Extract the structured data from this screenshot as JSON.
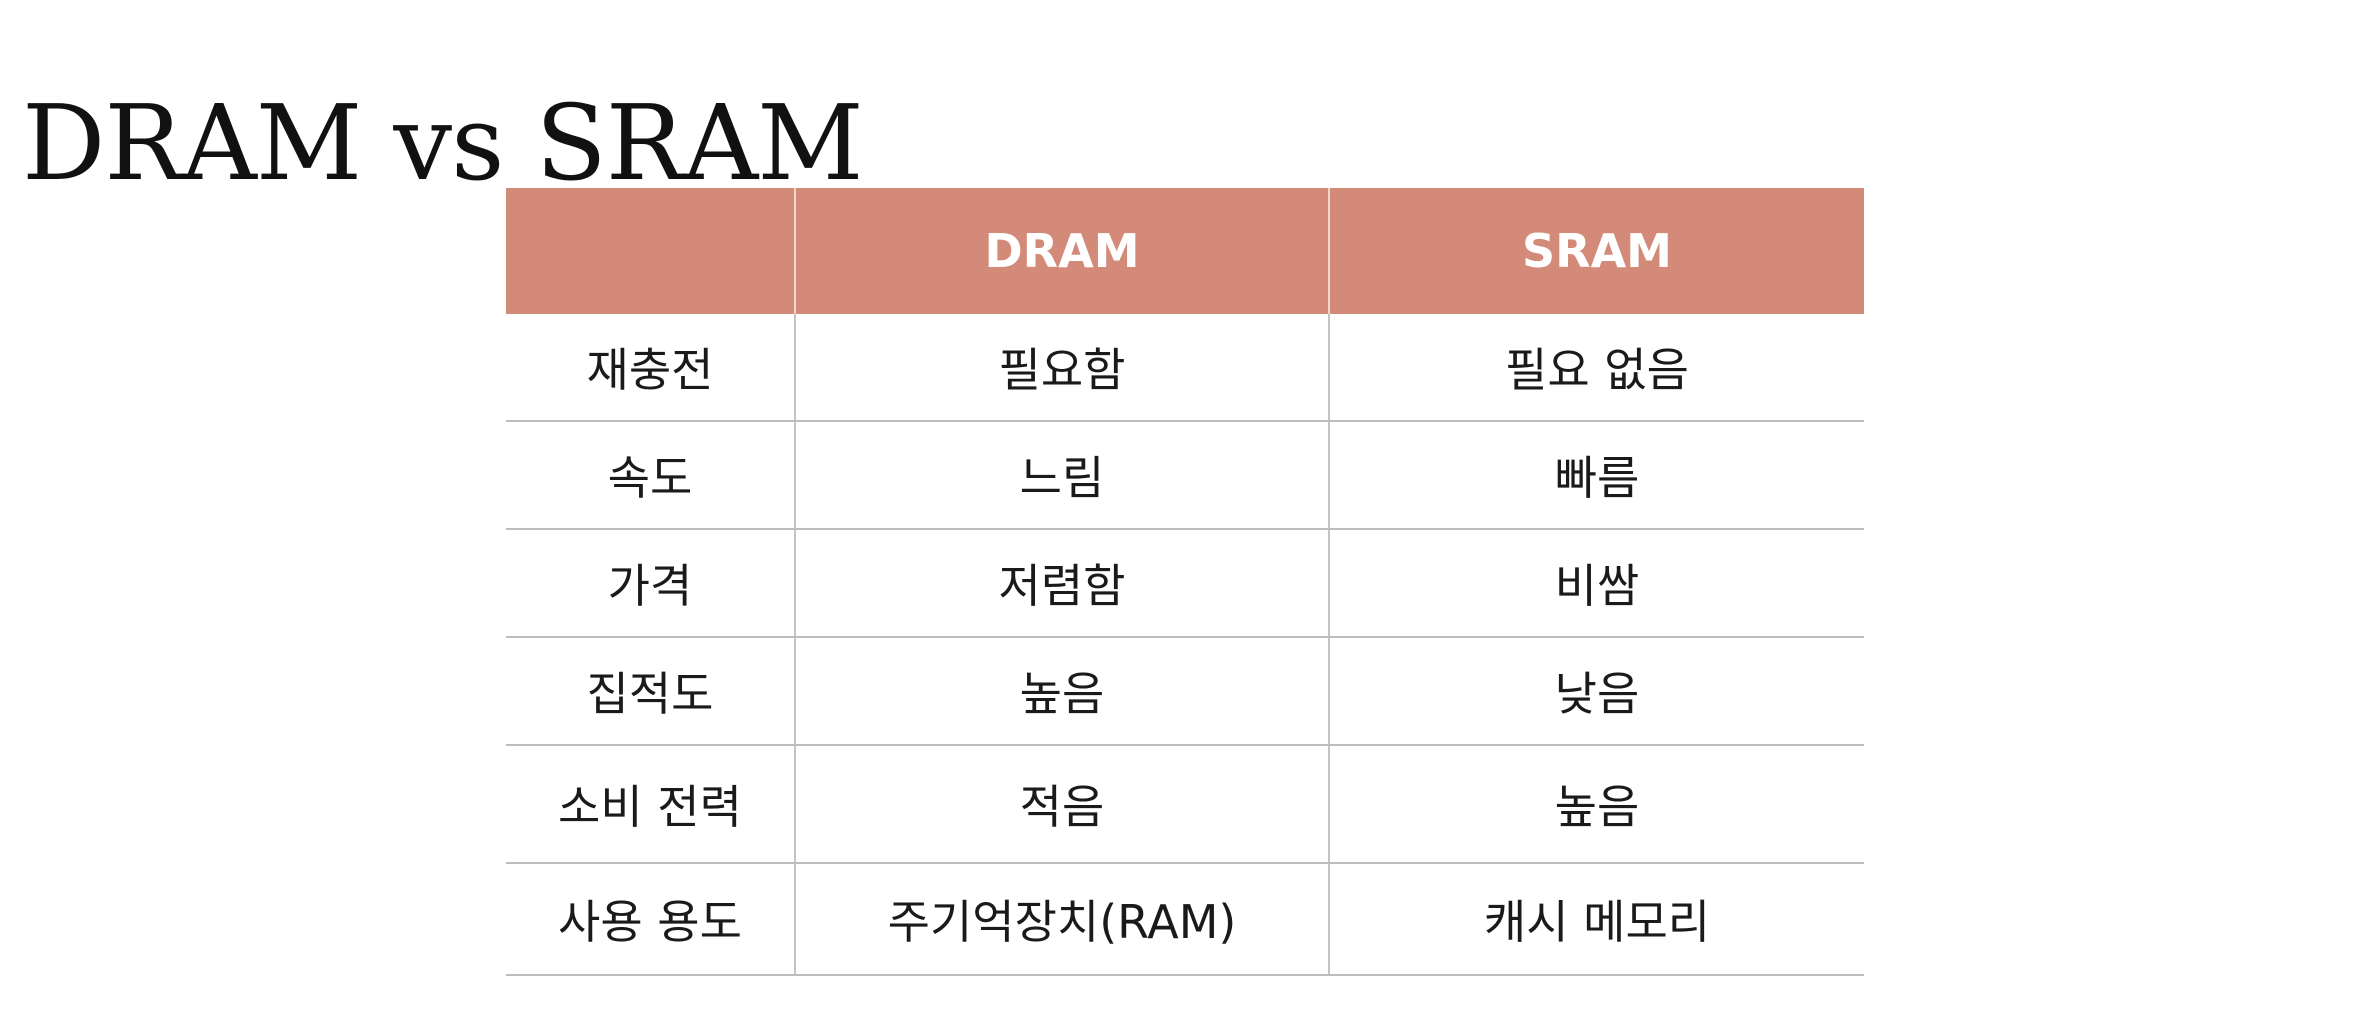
{
  "title": "DRAM vs SRAM",
  "table": {
    "headers": [
      "",
      "DRAM",
      "SRAM"
    ],
    "rows": [
      [
        "재충전",
        "필요함",
        "필요 없음"
      ],
      [
        "속도",
        "느림",
        "빠름"
      ],
      [
        "가격",
        "저렴함",
        "비쌈"
      ],
      [
        "집적도",
        "높음",
        "낮음"
      ],
      [
        "소비 전력",
        "적음",
        "높음"
      ],
      [
        "사용 용도",
        "주기억장치(RAM)",
        "캐시 메모리"
      ]
    ]
  },
  "colors": {
    "header_background": "#d48a79",
    "header_text": "#ffffff",
    "row_divider": "#bdbdbd"
  }
}
